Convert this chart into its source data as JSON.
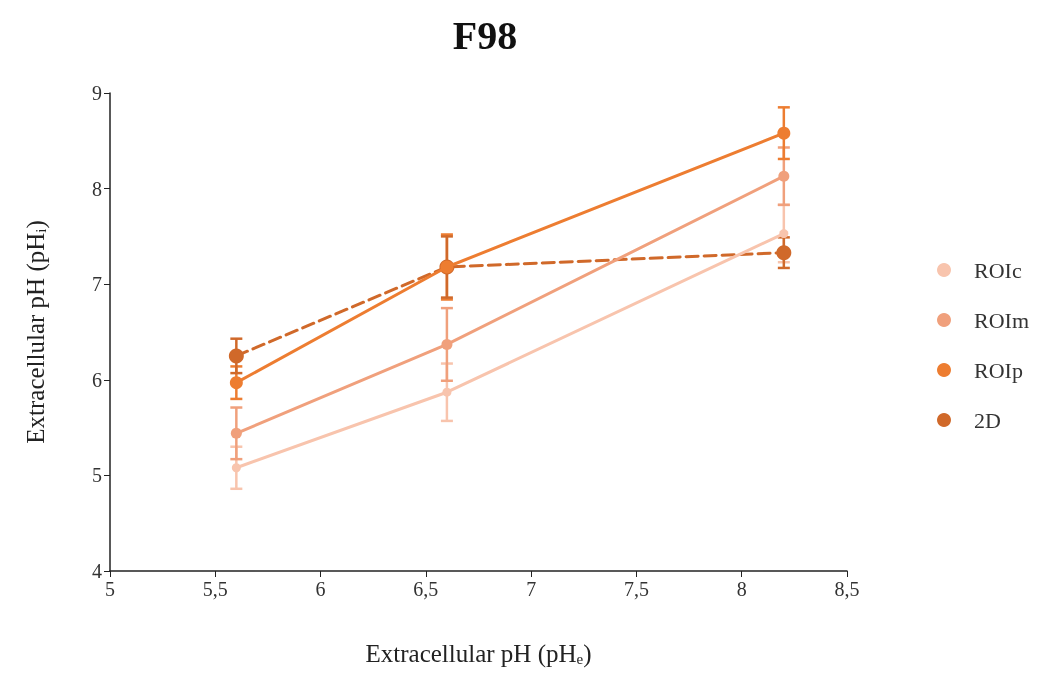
{
  "chart_data": {
    "type": "line",
    "title": "F98",
    "xlabel": "Extracellular pH (pH$_{e}$)",
    "ylabel": "Extracellular pH (pH$_{i}$)",
    "x": [
      5.6,
      6.6,
      8.2
    ],
    "xlim": [
      5,
      8.5
    ],
    "xticks": [
      5,
      {
        "value": 5.5,
        "label": "5,5"
      },
      6,
      {
        "value": 6.5,
        "label": "6,5"
      },
      7,
      {
        "value": 7.5,
        "label": "7,5"
      },
      8,
      {
        "value": 8.5,
        "label": "8,5"
      }
    ],
    "ylim": [
      4,
      9
    ],
    "yticks": [
      4,
      5,
      6,
      7,
      8,
      9
    ],
    "grid": false,
    "legend": "right",
    "marker": "circle",
    "series": [
      {
        "name": "ROIc",
        "color": "#f8c4ad",
        "values": [
          5.08,
          5.87,
          7.53
        ],
        "errors": [
          0.22,
          0.3,
          0.3
        ],
        "line_style": "solid"
      },
      {
        "name": "ROIm",
        "color": "#f0a07c",
        "values": [
          5.44,
          6.37,
          8.13
        ],
        "errors": [
          0.27,
          0.38,
          0.3
        ],
        "line_style": "solid"
      },
      {
        "name": "ROIp",
        "color": "#ed7d31",
        "values": [
          5.97,
          7.18,
          8.58
        ],
        "errors": [
          0.17,
          0.34,
          0.27
        ],
        "line_style": "solid"
      },
      {
        "name": "2D",
        "color": "#d0692a",
        "values": [
          6.25,
          7.18,
          7.33
        ],
        "errors": [
          0.18,
          0.32,
          0.16
        ],
        "line_style": "dashed"
      }
    ]
  }
}
